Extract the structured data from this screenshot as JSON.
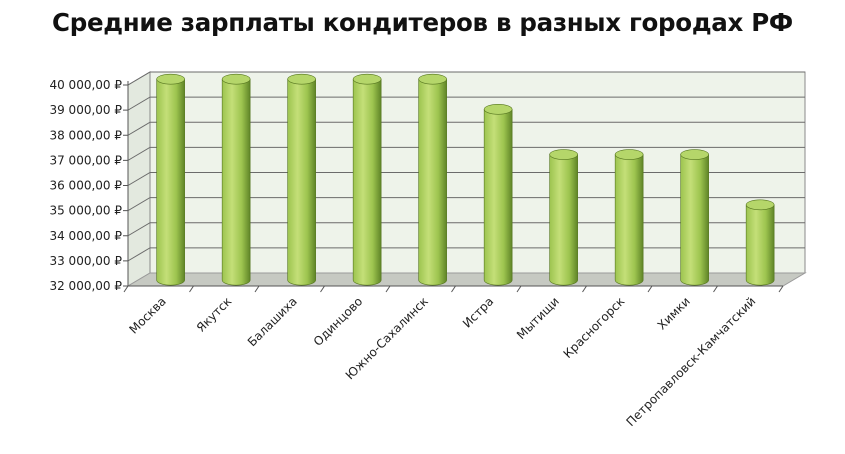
{
  "chart_data": {
    "type": "bar",
    "title": "Средние зарплаты кондитеров в разных городах РФ",
    "xlabel": "",
    "ylabel": "",
    "ylim": [
      32000,
      40000
    ],
    "yticks": [
      "32 000,00 ₽",
      "33 000,00 ₽",
      "34 000,00 ₽",
      "35 000,00 ₽",
      "36 000,00 ₽",
      "37 000,00 ₽",
      "38 000,00 ₽",
      "39 000,00 ₽",
      "40 000,00 ₽"
    ],
    "categories": [
      "Москва",
      "Якутск",
      "Балашиха",
      "Одинцово",
      "Южно-Сахалинск",
      "Истра",
      "Мытищи",
      "Красногорск",
      "Химки",
      "Петропавловск-Камчатский"
    ],
    "values": [
      40000,
      40000,
      40000,
      40000,
      40000,
      38800,
      37000,
      37000,
      37000,
      35000
    ],
    "grid": true,
    "legend": "none",
    "style": "3d-cylinder",
    "colors": {
      "bar_light": "#c4df78",
      "bar_mid": "#9dc44f",
      "bar_dark": "#5f8427",
      "bar_top": "#b5d66a",
      "wall": "#eef3ea",
      "floor": "#c6c9c2",
      "grid": "#6b6b6b"
    }
  }
}
